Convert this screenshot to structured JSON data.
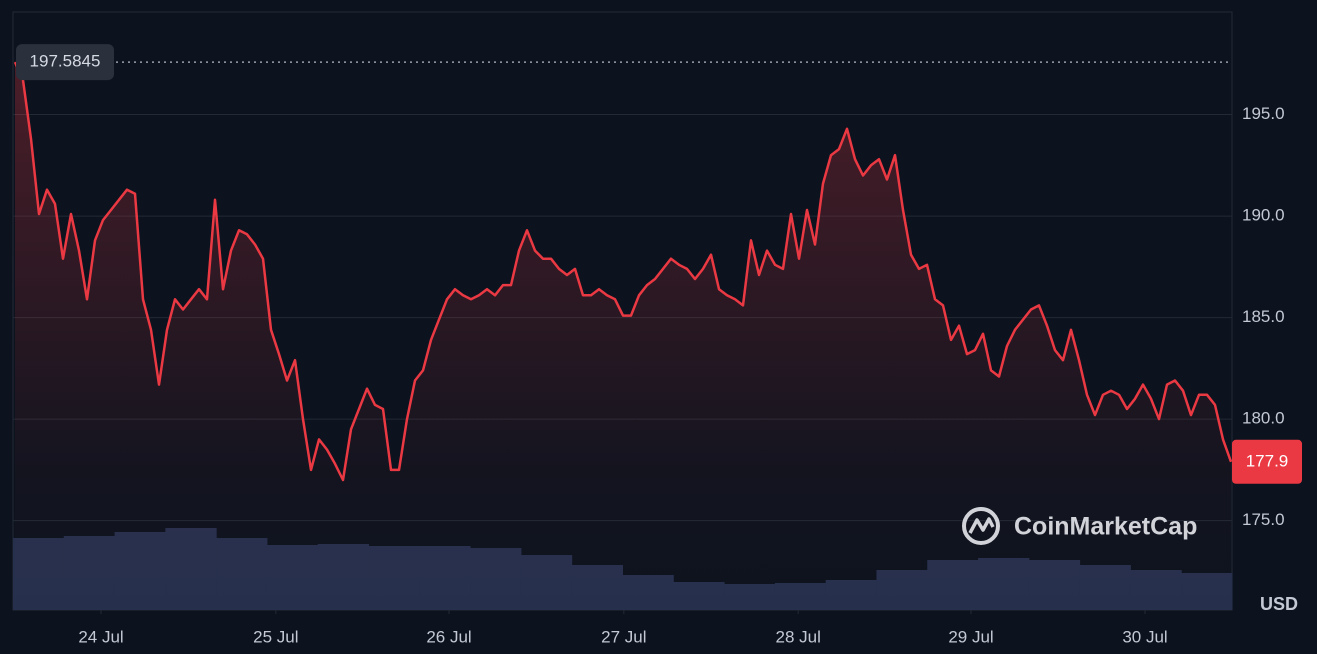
{
  "chart_data": {
    "type": "line",
    "series": [
      {
        "color": "#ea3943",
        "values": [
          197.5845,
          196.7,
          193.8,
          190.1,
          191.3,
          190.6,
          187.9,
          190.1,
          188.3,
          185.9,
          188.8,
          189.8,
          190.3,
          190.8,
          191.3,
          191.1,
          185.9,
          184.4,
          181.7,
          184.4,
          185.9,
          185.4,
          185.9,
          186.4,
          185.9,
          190.8,
          186.4,
          188.3,
          189.3,
          189.1,
          188.6,
          187.9,
          184.4,
          183.2,
          181.9,
          182.9,
          180.0,
          177.5,
          179.0,
          178.5,
          177.8,
          177.0,
          179.5,
          180.5,
          181.5,
          180.7,
          180.5,
          177.5,
          177.5,
          180.0,
          181.9,
          182.4,
          183.9,
          184.9,
          185.9,
          186.4,
          186.1,
          185.9,
          186.1,
          186.4,
          186.1,
          186.6,
          186.6,
          188.3,
          189.3,
          188.3,
          187.9,
          187.9,
          187.4,
          187.1,
          187.4,
          186.1,
          186.1,
          186.4,
          186.1,
          185.9,
          185.1,
          185.1,
          186.1,
          186.6,
          186.9,
          187.4,
          187.9,
          187.6,
          187.4,
          186.9,
          187.4,
          188.1,
          186.4,
          186.1,
          185.9,
          185.6,
          188.8,
          187.1,
          188.3,
          187.6,
          187.4,
          190.1,
          187.9,
          190.3,
          188.6,
          191.6,
          193.0,
          193.3,
          194.3,
          192.8,
          192.0,
          192.5,
          192.8,
          191.8,
          193.0,
          190.3,
          188.1,
          187.4,
          187.6,
          185.9,
          185.6,
          183.9,
          184.6,
          183.2,
          183.4,
          184.2,
          182.4,
          182.1,
          183.6,
          184.4,
          184.9,
          185.4,
          185.6,
          184.6,
          183.4,
          182.9,
          184.4,
          182.9,
          181.2,
          180.2,
          181.2,
          181.4,
          181.2,
          180.5,
          181.0,
          181.7,
          181.0,
          180.0,
          181.7,
          181.9,
          181.4,
          180.2,
          181.2,
          181.2,
          180.7,
          179.0,
          177.9
        ]
      }
    ],
    "volume": {
      "color": "#26304d",
      "values": [
        72,
        74,
        78,
        82,
        72,
        65,
        66,
        64,
        64,
        62,
        55,
        45,
        35,
        28,
        26,
        27,
        30,
        40,
        50,
        52,
        50,
        45,
        40,
        37
      ]
    },
    "xticks": [
      {
        "value": 10.75,
        "label": "24 Jul"
      },
      {
        "value": 32.6,
        "label": "25 Jul"
      },
      {
        "value": 54.25,
        "label": "26 Jul"
      },
      {
        "value": 76.1,
        "label": "27 Jul"
      },
      {
        "value": 97.9,
        "label": "28 Jul"
      },
      {
        "value": 119.5,
        "label": "29 Jul"
      },
      {
        "value": 141.25,
        "label": "30 Jul"
      }
    ],
    "ylim": [
      170.6,
      200.05
    ],
    "yticks": [
      {
        "value": 175,
        "label": "175.0"
      },
      {
        "value": 180,
        "label": "180.0"
      },
      {
        "value": 185,
        "label": "185.0"
      },
      {
        "value": 190,
        "label": "190.0"
      },
      {
        "value": 195,
        "label": "195.0"
      }
    ],
    "reference_value": 197.5845,
    "current_value": 177.9,
    "y_axis_label": "USD",
    "watermark": "CoinMarketCap",
    "grid": true
  }
}
